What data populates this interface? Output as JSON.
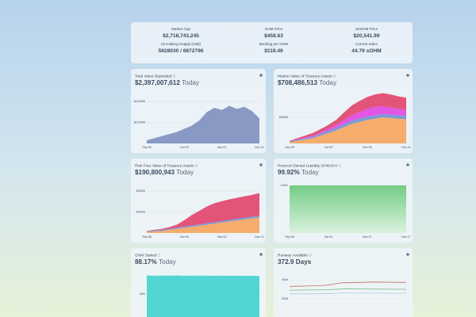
{
  "stats": [
    {
      "label": "Market Cap",
      "value": "$2,718,743,245"
    },
    {
      "label": "OHM Price",
      "value": "$458.63"
    },
    {
      "label": "wsOHM Price",
      "value": "$20,541.99"
    },
    {
      "label": "Circulating Supply (total)",
      "value": "5928030 / 6872796"
    },
    {
      "label": "Backing per OHM",
      "value": "$119.49"
    },
    {
      "label": "Current Index",
      "value": "44.79 sOHM"
    }
  ],
  "panels": [
    {
      "title": "Total Value Deposited",
      "value": "$2,397,007,612",
      "suffix": "Today",
      "chart": {
        "type": "area",
        "categories": [
          "Sep 05",
          null,
          null,
          null,
          null,
          "Oct 03",
          null,
          null,
          null,
          null,
          "Nov 01",
          null,
          null,
          null,
          null,
          "Dec 10"
        ],
        "ylim": [
          0,
          5000
        ],
        "yticks": [
          {
            "value": 2000,
            "label": "$2,000M"
          },
          {
            "value": 4000,
            "label": "$4,000M"
          }
        ],
        "series": [
          {
            "color": "#7f8fbd",
            "values": [
              300,
              500,
              700,
              900,
              1100,
              1400,
              1700,
              2200,
              3000,
              3400,
              3200,
              3600,
              3300,
              3500,
              3100,
              2400
            ]
          }
        ]
      }
    },
    {
      "title": "Market Value of Treasury Assets",
      "value": "$708,486,513",
      "suffix": "Today",
      "chart": {
        "type": "stacked-area",
        "categories": [
          "Sep 05",
          null,
          null,
          null,
          null,
          "Oct 03",
          null,
          null,
          null,
          null,
          "Nov 05",
          null,
          null,
          null,
          null,
          "Dec 10"
        ],
        "ylim": [
          0,
          800
        ],
        "yticks": [
          {
            "value": 400,
            "label": "$400M"
          }
        ],
        "series": [
          {
            "color": "#f6a45c",
            "values": [
              20,
              40,
              60,
              80,
              120,
              160,
              200,
              250,
              300,
              330,
              360,
              380,
              400,
              390,
              380,
              370
            ]
          },
          {
            "color": "#6f90d2",
            "values": [
              10,
              15,
              20,
              25,
              30,
              35,
              40,
              45,
              50,
              50,
              50,
              50,
              50,
              50,
              50,
              50
            ]
          },
          {
            "color": "#e045e0",
            "values": [
              0,
              5,
              10,
              15,
              20,
              30,
              40,
              60,
              80,
              100,
              120,
              130,
              120,
              110,
              100,
              90
            ]
          },
          {
            "color": "#e2426a",
            "values": [
              10,
              20,
              30,
              40,
              50,
              60,
              80,
              120,
              150,
              170,
              180,
              190,
              200,
              200,
              190,
              190
            ]
          }
        ]
      }
    },
    {
      "title": "Risk Free Value of Treasury Assets",
      "value": "$190,800,943",
      "suffix": "Today",
      "chart": {
        "type": "stacked-area",
        "categories": [
          "Sep 08",
          null,
          null,
          null,
          null,
          "Oct 05",
          null,
          null,
          null,
          null,
          "Nov 03",
          null,
          null,
          null,
          null,
          "Dec 12"
        ],
        "ylim": [
          0,
          250
        ],
        "yticks": [
          {
            "value": 100,
            "label": "$100M"
          },
          {
            "value": 200,
            "label": "$200M"
          }
        ],
        "series": [
          {
            "color": "#f6a45c",
            "values": [
              5,
              8,
              10,
              15,
              20,
              25,
              30,
              35,
              40,
              45,
              50,
              55,
              60,
              65,
              70,
              75
            ]
          },
          {
            "color": "#6f90d2",
            "values": [
              3,
              4,
              5,
              5,
              5,
              6,
              6,
              6,
              7,
              7,
              7,
              8,
              8,
              8,
              8,
              8
            ]
          },
          {
            "color": "#e2426a",
            "values": [
              2,
              3,
              5,
              8,
              15,
              30,
              50,
              65,
              80,
              90,
              95,
              98,
              100,
              102,
              104,
              108
            ]
          }
        ]
      }
    },
    {
      "title": "Protocol Owned Liquidity OHM-DAI",
      "value": "99.92%",
      "suffix": "Today",
      "chart": {
        "type": "area",
        "categories": [
          "Sep 05",
          null,
          null,
          null,
          null,
          "Oct 03",
          null,
          null,
          null,
          null,
          "Nov 07",
          null,
          null,
          null,
          null,
          "Dec 17"
        ],
        "ylim": [
          0,
          110
        ],
        "yticks": [
          {
            "value": 100,
            "label": "100%"
          }
        ],
        "series": [
          {
            "color": "#5cc46e",
            "values": [
              99.9,
              99.9,
              99.9,
              99.9,
              99.9,
              99.9,
              99.9,
              99.9,
              99.9,
              99.9,
              99.9,
              99.9,
              99.9,
              99.9,
              99.9,
              99.9
            ]
          }
        ]
      }
    },
    {
      "title": "OHM Staked",
      "value": "88.17%",
      "suffix": "Today",
      "chart": {
        "type": "area",
        "ylim": [
          0,
          100
        ],
        "yticks": [
          {
            "value": 50,
            "label": "50%"
          }
        ],
        "series": [
          {
            "color": "#3fd3cf",
            "values": [
              89,
              88.5,
              88.8,
              88.6,
              88.9,
              88.4,
              88.7,
              88.5,
              88.8,
              88.3,
              88.6,
              88.4,
              88.5,
              88.2,
              88.3,
              88.2
            ]
          }
        ]
      }
    },
    {
      "title": "Runway Available",
      "value": "372.9 Days",
      "chart": {
        "type": "line",
        "ylim": [
          0,
          500
        ],
        "yticks": [
          {
            "value": 200,
            "label": "200d"
          },
          {
            "value": 400,
            "label": "400d"
          }
        ],
        "series": [
          {
            "color": "#b85858",
            "values": [
              330,
              332,
              334,
              336,
              338,
              345,
              360,
              370,
              368,
              372,
              375,
              376,
              375,
              374,
              373,
              372.9
            ]
          },
          {
            "color": "#67b886",
            "values": [
              290,
              291,
              292,
              293,
              294,
              296,
              300,
              304,
              303,
              303,
              302,
              302,
              301,
              301,
              300,
              300
            ]
          },
          {
            "color": "#9fc7d8",
            "values": [
              250,
              251,
              252,
              253,
              254,
              256,
              258,
              262,
              261,
              260,
              260,
              259,
              259,
              258,
              258,
              258
            ]
          }
        ]
      }
    }
  ]
}
